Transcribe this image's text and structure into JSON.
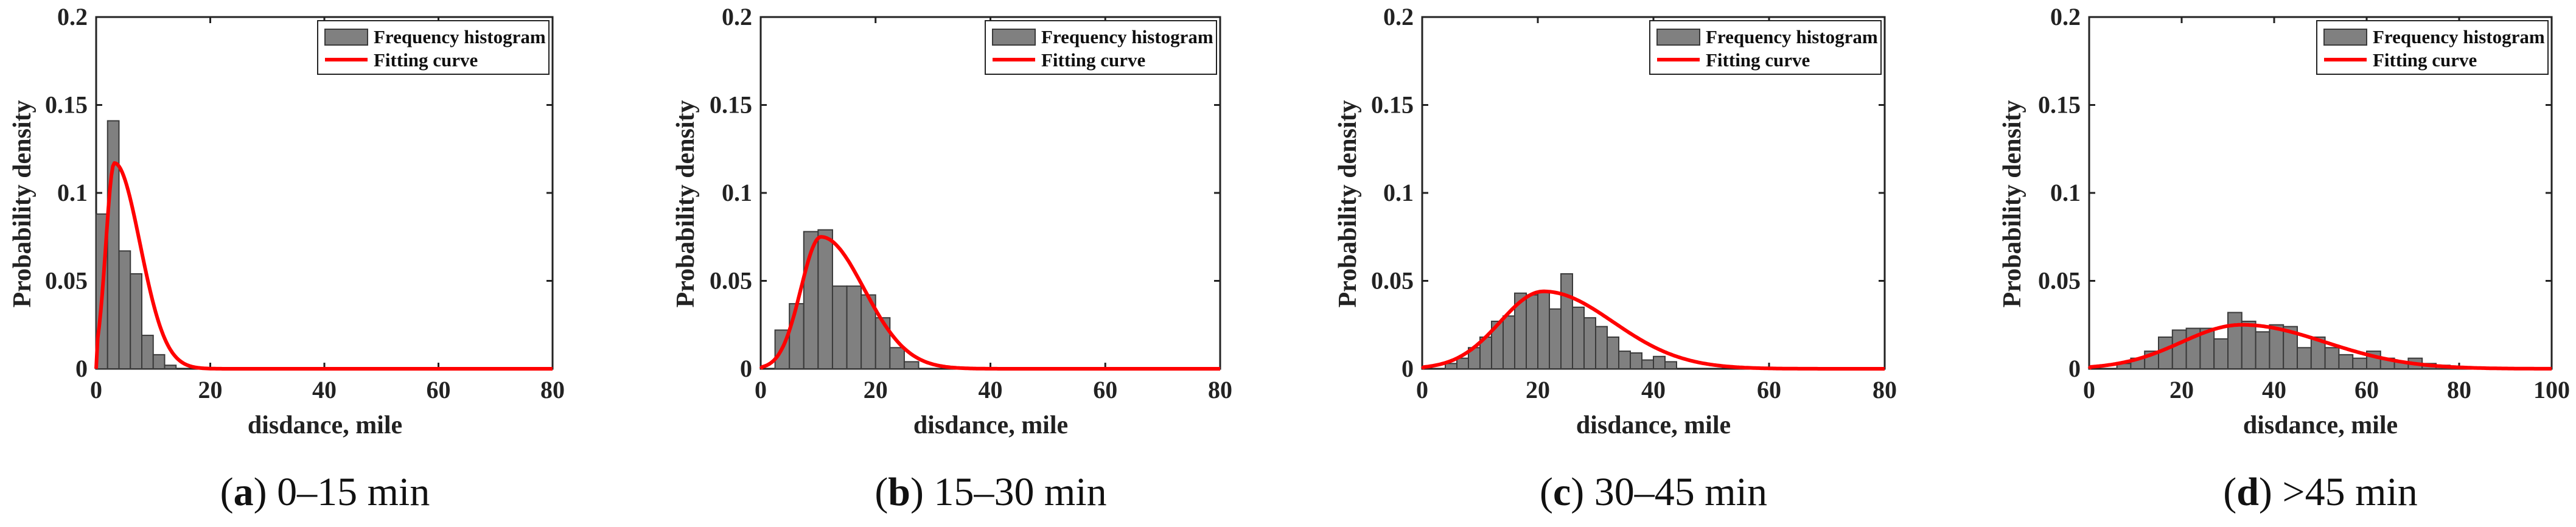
{
  "figure": {
    "legend": {
      "histogram": "Frequency histogram",
      "curve": "Fitting curve"
    },
    "colors": {
      "bar": "#808080",
      "bar_edge": "#3a3a3a",
      "curve": "#ff0000"
    }
  },
  "chart_data": [
    {
      "type": "bar",
      "subtype": "histogram_with_fit",
      "caption_letter": "a",
      "caption_text": "0–15 min",
      "xlabel": "disdance, mile",
      "ylabel": "Probability density",
      "xlim": [
        0,
        80
      ],
      "ylim": [
        0,
        0.2
      ],
      "xticks": [
        "0",
        "20",
        "40",
        "60",
        "80"
      ],
      "yticks": [
        "0",
        "0.05",
        "0.1",
        "0.15",
        "0.2"
      ],
      "bin_width": 2,
      "bins_start": [
        0,
        2,
        4,
        6,
        8,
        10,
        12
      ],
      "values": [
        0.088,
        0.141,
        0.067,
        0.054,
        0.019,
        0.008,
        0.002
      ],
      "fit": {
        "type": "lognormal",
        "mode": 3.2,
        "peak": 0.117,
        "sigma_left": 1.5,
        "sigma_right": 4.5
      },
      "legend": [
        "Frequency histogram",
        "Fitting curve"
      ]
    },
    {
      "type": "bar",
      "subtype": "histogram_with_fit",
      "caption_letter": "b",
      "caption_text": "15–30 min",
      "xlabel": "disdance, mile",
      "ylabel": "Probability density",
      "xlim": [
        0,
        80
      ],
      "ylim": [
        0,
        0.2
      ],
      "xticks": [
        "0",
        "20",
        "40",
        "60",
        "80"
      ],
      "yticks": [
        "0",
        "0.05",
        "0.1",
        "0.15",
        "0.2"
      ],
      "bin_width": 2.5,
      "bins_start": [
        2.5,
        5,
        7.5,
        10,
        12.5,
        15,
        17.5,
        20,
        22.5,
        25
      ],
      "values": [
        0.022,
        0.037,
        0.078,
        0.079,
        0.047,
        0.047,
        0.042,
        0.029,
        0.012,
        0.004
      ],
      "fit": {
        "type": "lognormal",
        "mode": 10.5,
        "peak": 0.075,
        "sigma_left": 3.5,
        "sigma_right": 7.5
      },
      "legend": [
        "Frequency histogram",
        "Fitting curve"
      ]
    },
    {
      "type": "bar",
      "subtype": "histogram_with_fit",
      "caption_letter": "c",
      "caption_text": "30–45 min",
      "xlabel": "disdance, mile",
      "ylabel": "Probability density",
      "xlim": [
        0,
        80
      ],
      "ylim": [
        0,
        0.2
      ],
      "xticks": [
        "0",
        "20",
        "40",
        "60",
        "80"
      ],
      "yticks": [
        "0",
        "0.05",
        "0.1",
        "0.15",
        "0.2"
      ],
      "bin_width": 2,
      "bins_start": [
        4,
        6,
        8,
        10,
        12,
        14,
        16,
        18,
        20,
        22,
        24,
        26,
        28,
        30,
        32,
        34,
        36,
        38,
        40,
        42
      ],
      "values": [
        0.003,
        0.006,
        0.012,
        0.018,
        0.027,
        0.03,
        0.043,
        0.042,
        0.044,
        0.034,
        0.054,
        0.035,
        0.029,
        0.024,
        0.018,
        0.01,
        0.009,
        0.005,
        0.007,
        0.004
      ],
      "fit": {
        "type": "lognormal",
        "mode": 21,
        "peak": 0.044,
        "sigma_left": 7.5,
        "sigma_right": 12
      },
      "legend": [
        "Frequency histogram",
        "Fitting curve"
      ]
    },
    {
      "type": "bar",
      "subtype": "histogram_with_fit",
      "caption_letter": "d",
      "caption_text": ">45 min",
      "xlabel": "disdance, mile",
      "ylabel": "Probability density",
      "xlim": [
        0,
        100
      ],
      "ylim": [
        0,
        0.2
      ],
      "xticks": [
        "0",
        "20",
        "40",
        "60",
        "80",
        "100"
      ],
      "yticks": [
        "0",
        "0.05",
        "0.1",
        "0.15",
        "0.2"
      ],
      "bin_width": 3,
      "bins_start": [
        6,
        9,
        12,
        15,
        18,
        21,
        24,
        27,
        30,
        33,
        36,
        39,
        42,
        45,
        48,
        51,
        54,
        57,
        60,
        63,
        66,
        69,
        72,
        75,
        78
      ],
      "values": [
        0.003,
        0.006,
        0.01,
        0.018,
        0.022,
        0.023,
        0.023,
        0.017,
        0.032,
        0.027,
        0.021,
        0.025,
        0.024,
        0.012,
        0.018,
        0.012,
        0.008,
        0.006,
        0.01,
        0.006,
        0.004,
        0.006,
        0.003,
        0.002,
        0.001
      ],
      "fit": {
        "type": "lognormal",
        "mode": 33,
        "peak": 0.025,
        "sigma_left": 13,
        "sigma_right": 18
      },
      "legend": [
        "Frequency histogram",
        "Fitting curve"
      ]
    }
  ]
}
